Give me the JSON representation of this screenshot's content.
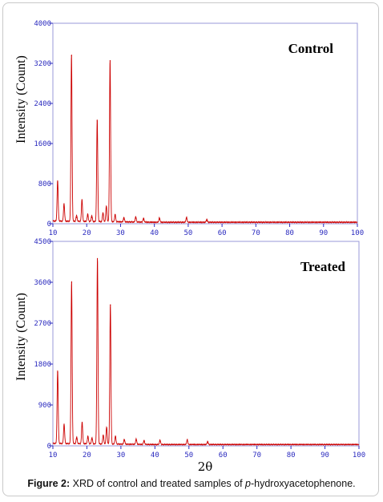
{
  "caption": {
    "label": "Figure 2:",
    "text_before": " XRD of control and treated samples of ",
    "italic": "p",
    "text_after": "-hydroxyacetophenone."
  },
  "colors": {
    "trace": "#cc0000",
    "baseline": "#ff6b6b",
    "axis": "#2b2bbf",
    "frame": "#9a9ad8"
  },
  "chart_data": [
    {
      "type": "line",
      "title": "Control",
      "xlabel": "",
      "ylabel": "Intensity (Count)",
      "xlim": [
        10,
        100
      ],
      "ylim": [
        0,
        4000
      ],
      "x_ticks": [
        10,
        20,
        30,
        40,
        50,
        60,
        70,
        80,
        90,
        100
      ],
      "y_ticks": [
        0,
        800,
        1600,
        2400,
        3200,
        4000
      ],
      "baseline": 30,
      "peaks": [
        {
          "x": 11.4,
          "y": 820
        },
        {
          "x": 13.3,
          "y": 350
        },
        {
          "x": 15.5,
          "y": 3350
        },
        {
          "x": 17.0,
          "y": 120
        },
        {
          "x": 18.6,
          "y": 440
        },
        {
          "x": 20.3,
          "y": 150
        },
        {
          "x": 21.5,
          "y": 120
        },
        {
          "x": 23.1,
          "y": 2050
        },
        {
          "x": 24.8,
          "y": 180
        },
        {
          "x": 25.8,
          "y": 320
        },
        {
          "x": 26.9,
          "y": 3250
        },
        {
          "x": 28.4,
          "y": 150
        },
        {
          "x": 31.0,
          "y": 90
        },
        {
          "x": 34.5,
          "y": 110
        },
        {
          "x": 36.8,
          "y": 80
        },
        {
          "x": 41.5,
          "y": 90
        },
        {
          "x": 49.5,
          "y": 100
        },
        {
          "x": 55.5,
          "y": 60
        }
      ]
    },
    {
      "type": "line",
      "title": "Treated",
      "xlabel": "2θ",
      "ylabel": "Intensity (Count)",
      "xlim": [
        10,
        100
      ],
      "ylim": [
        0,
        4500
      ],
      "x_ticks": [
        10,
        20,
        30,
        40,
        50,
        60,
        70,
        80,
        90,
        100
      ],
      "y_ticks": [
        0,
        900,
        1800,
        2700,
        3600,
        4500
      ],
      "baseline": 30,
      "peaks": [
        {
          "x": 11.4,
          "y": 1620
        },
        {
          "x": 13.3,
          "y": 430
        },
        {
          "x": 15.5,
          "y": 3600
        },
        {
          "x": 17.0,
          "y": 150
        },
        {
          "x": 18.6,
          "y": 480
        },
        {
          "x": 20.3,
          "y": 170
        },
        {
          "x": 21.5,
          "y": 140
        },
        {
          "x": 23.1,
          "y": 4120
        },
        {
          "x": 24.8,
          "y": 200
        },
        {
          "x": 25.8,
          "y": 380
        },
        {
          "x": 26.9,
          "y": 3100
        },
        {
          "x": 28.4,
          "y": 180
        },
        {
          "x": 31.0,
          "y": 110
        },
        {
          "x": 34.5,
          "y": 120
        },
        {
          "x": 36.8,
          "y": 90
        },
        {
          "x": 41.5,
          "y": 100
        },
        {
          "x": 49.5,
          "y": 110
        },
        {
          "x": 55.5,
          "y": 70
        }
      ]
    }
  ]
}
